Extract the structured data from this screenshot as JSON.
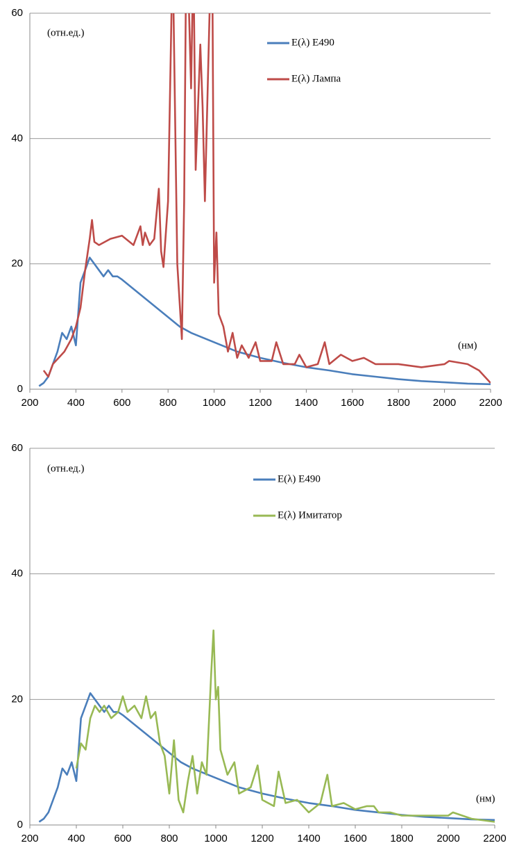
{
  "chart_data": [
    {
      "type": "line",
      "annotations": [
        "(отн.ед.)",
        "(нм)"
      ],
      "xlim": [
        200,
        2200
      ],
      "xticks": [
        200,
        400,
        600,
        800,
        1000,
        1200,
        1400,
        1600,
        1800,
        2000,
        2200
      ],
      "ylim": [
        0,
        60
      ],
      "yticks": [
        0,
        20,
        40,
        60
      ],
      "grid": true,
      "series": [
        {
          "name": "E(λ) E490",
          "color": "#4a7ebb",
          "x": [
            240,
            260,
            280,
            300,
            320,
            340,
            360,
            380,
            400,
            420,
            440,
            460,
            480,
            500,
            520,
            540,
            560,
            580,
            600,
            650,
            700,
            750,
            800,
            850,
            900,
            1000,
            1100,
            1200,
            1300,
            1400,
            1500,
            1600,
            1700,
            1800,
            1900,
            2000,
            2100,
            2200
          ],
          "values": [
            0.5,
            1,
            2,
            4,
            6,
            9,
            8,
            10,
            7,
            17,
            19,
            21,
            20,
            19,
            18,
            19,
            18,
            18,
            17.5,
            16,
            14.5,
            13,
            11.5,
            10,
            9,
            7.5,
            6,
            5,
            4.2,
            3.5,
            3,
            2.4,
            2,
            1.6,
            1.3,
            1.1,
            0.9,
            0.8
          ]
        },
        {
          "name": "E(λ) Лампа",
          "color": "#be4b48",
          "x": [
            260,
            280,
            300,
            350,
            380,
            400,
            420,
            440,
            460,
            470,
            480,
            500,
            550,
            600,
            650,
            680,
            690,
            700,
            720,
            740,
            760,
            770,
            780,
            800,
            820,
            840,
            860,
            870,
            880,
            900,
            910,
            920,
            940,
            950,
            960,
            980,
            990,
            1000,
            1010,
            1020,
            1040,
            1060,
            1080,
            1100,
            1120,
            1150,
            1180,
            1200,
            1250,
            1270,
            1300,
            1350,
            1370,
            1400,
            1450,
            1480,
            1500,
            1550,
            1600,
            1650,
            1700,
            1800,
            1900,
            2000,
            2020,
            2100,
            2150,
            2200
          ],
          "values": [
            3,
            2,
            4,
            6,
            8,
            10,
            13,
            19,
            24,
            27,
            23.5,
            23,
            24,
            24.5,
            23,
            26,
            23,
            25,
            23,
            24,
            32,
            22,
            19.5,
            30,
            70,
            20,
            8,
            30,
            75,
            48,
            70,
            35,
            55,
            45,
            30,
            60,
            80,
            17,
            25,
            12,
            10,
            6,
            9,
            5,
            7,
            5,
            7.5,
            4.5,
            4.5,
            7.5,
            4,
            4,
            5.5,
            3.5,
            4,
            7.5,
            4,
            5.5,
            4.5,
            5,
            4,
            4,
            3.5,
            4,
            4.5,
            4,
            3,
            1
          ]
        }
      ]
    },
    {
      "type": "line",
      "annotations": [
        "(отн.ед.)",
        "(нм)"
      ],
      "xlim": [
        200,
        2200
      ],
      "xticks": [
        200,
        400,
        600,
        800,
        1000,
        1200,
        1400,
        1600,
        1800,
        2000,
        2200
      ],
      "ylim": [
        0,
        60
      ],
      "yticks": [
        0,
        20,
        40,
        60
      ],
      "grid": true,
      "series": [
        {
          "name": "E(λ) E490",
          "color": "#4a7ebb",
          "x": [
            240,
            260,
            280,
            300,
            320,
            340,
            360,
            380,
            400,
            420,
            440,
            460,
            480,
            500,
            520,
            540,
            560,
            580,
            600,
            650,
            700,
            750,
            800,
            850,
            900,
            1000,
            1100,
            1200,
            1300,
            1400,
            1500,
            1600,
            1700,
            1800,
            1900,
            2000,
            2100,
            2200
          ],
          "values": [
            0.5,
            1,
            2,
            4,
            6,
            9,
            8,
            10,
            7,
            17,
            19,
            21,
            20,
            19,
            18,
            19,
            18,
            18,
            17.5,
            16,
            14.5,
            13,
            11.5,
            10,
            9,
            7.5,
            6,
            5,
            4.2,
            3.5,
            3,
            2.4,
            2,
            1.6,
            1.3,
            1.1,
            0.9,
            0.8
          ]
        },
        {
          "name": "E(λ) Имитатор",
          "color": "#98b954",
          "x": [
            400,
            420,
            440,
            460,
            480,
            500,
            520,
            550,
            580,
            600,
            620,
            650,
            680,
            700,
            720,
            740,
            760,
            780,
            800,
            820,
            840,
            860,
            880,
            900,
            920,
            940,
            960,
            980,
            990,
            1000,
            1010,
            1020,
            1050,
            1080,
            1100,
            1150,
            1180,
            1200,
            1250,
            1270,
            1300,
            1350,
            1400,
            1450,
            1480,
            1500,
            1550,
            1600,
            1650,
            1680,
            1700,
            1750,
            1800,
            1900,
            2000,
            2020,
            2100,
            2200
          ],
          "values": [
            9,
            13,
            12,
            17,
            19,
            18,
            19,
            17,
            18,
            20.5,
            18,
            19,
            17,
            20.5,
            17,
            18,
            13,
            11,
            5,
            13.5,
            4,
            2,
            7,
            11,
            5,
            10,
            8,
            24,
            31,
            20,
            22,
            12,
            8,
            10,
            5,
            6,
            9.5,
            4,
            3,
            8.5,
            3.5,
            4,
            2,
            3.5,
            8,
            3,
            3.5,
            2.5,
            3,
            3,
            2,
            2,
            1.5,
            1.5,
            1.5,
            2,
            1,
            0.5
          ]
        }
      ]
    }
  ]
}
